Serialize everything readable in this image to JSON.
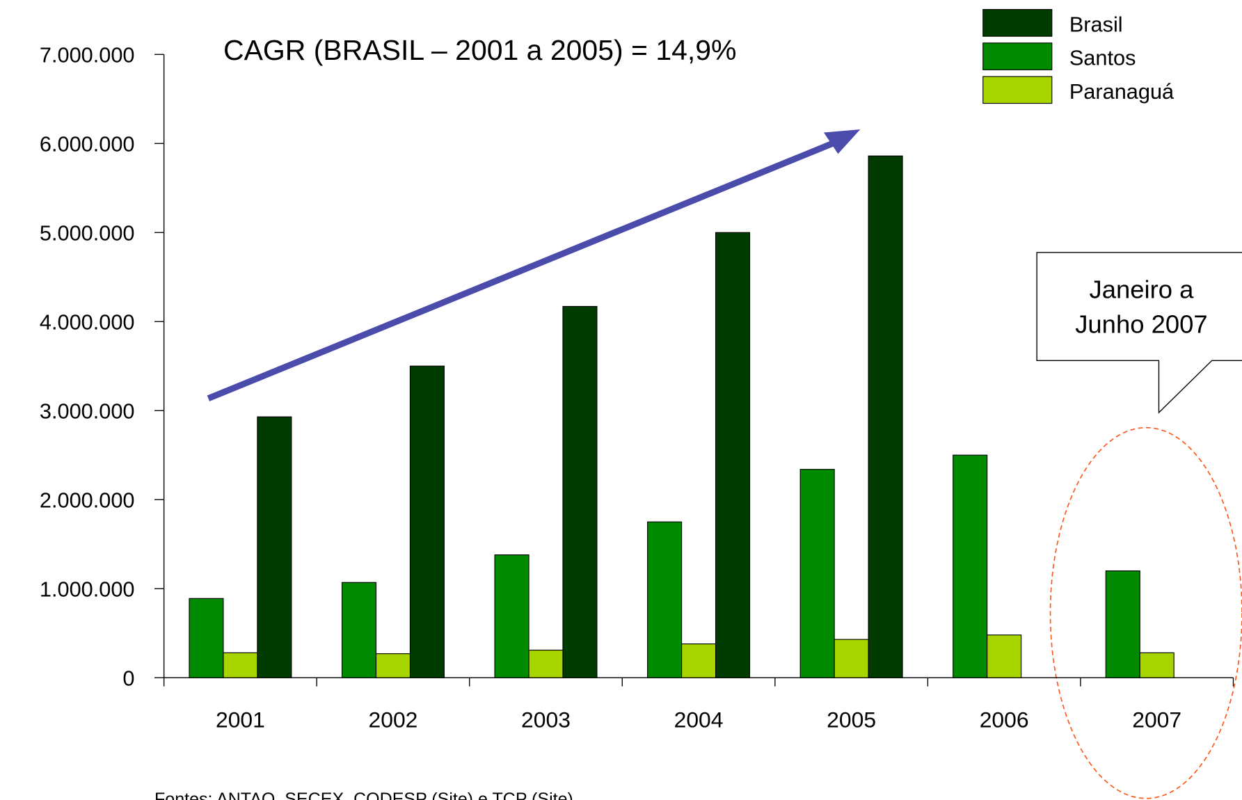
{
  "chart_data": {
    "type": "bar",
    "title": "CAGR (BRASIL – 2001 a 2005) = 14,9%",
    "source": "Fontes: ANTAQ, SECEX, CODESP (Site) e TCP (Site)",
    "callout": [
      "Janeiro a",
      "Junho 2007"
    ],
    "categories": [
      "2001",
      "2002",
      "2003",
      "2004",
      "2005",
      "2006",
      "2007"
    ],
    "series": [
      {
        "name": "Brasil",
        "color": "#003c00",
        "values": [
          2930000,
          3500000,
          4170000,
          5000000,
          5860000,
          null,
          null
        ]
      },
      {
        "name": "Santos",
        "color": "#008a00",
        "values": [
          890000,
          1070000,
          1380000,
          1750000,
          2340000,
          2500000,
          1200000
        ]
      },
      {
        "name": "Paranaguá",
        "color": "#a8d400",
        "values": [
          280000,
          270000,
          310000,
          380000,
          430000,
          480000,
          280000
        ]
      }
    ],
    "ylim": [
      0,
      7000000
    ],
    "yticks": [
      0,
      {
        "value": 1000000,
        "label": "1.000.000"
      },
      {
        "value": 2000000,
        "label": "2.000.000"
      },
      {
        "value": 3000000,
        "label": "3.000.000"
      },
      {
        "value": 4000000,
        "label": "4.000.000"
      },
      {
        "value": 5000000,
        "label": "5.000.000"
      },
      {
        "value": 6000000,
        "label": "6.000.000"
      },
      {
        "value": 7000000,
        "label": "7.000.000"
      }
    ],
    "legend": "top-right"
  }
}
